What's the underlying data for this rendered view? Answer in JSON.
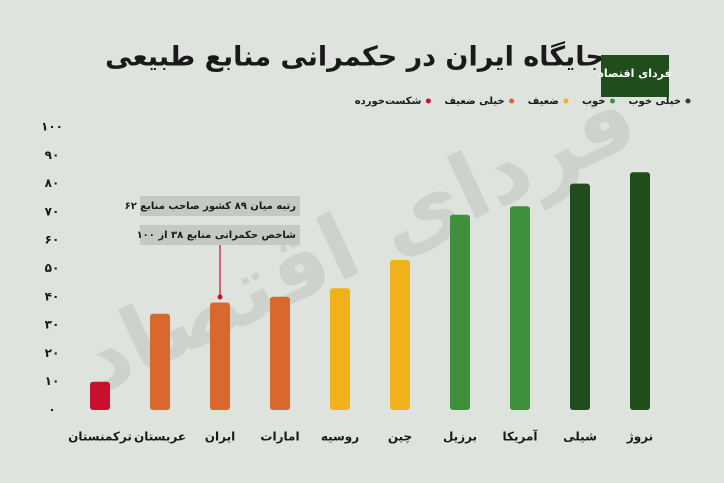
{
  "chart_data": {
    "type": "bar",
    "title": "جایگاه ایران در حکمرانی منابع طبیعی",
    "logo": "فردای اقتصاد",
    "categories": [
      "ترکمنستان",
      "عربستان",
      "ایران",
      "امارات",
      "روسیه",
      "چین",
      "برزیل",
      "آمریکا",
      "شیلی",
      "نروژ"
    ],
    "values": [
      10,
      34,
      38,
      40,
      43,
      53,
      69,
      72,
      80,
      84
    ],
    "colors": [
      "#c8102e",
      "#d9682e",
      "#d9682e",
      "#d9682e",
      "#f0b21a",
      "#f0b21a",
      "#3f8f3c",
      "#3f8f3c",
      "#1f4d1b",
      "#1f4d1b"
    ],
    "legend": [
      {
        "name": "خیلی خوب",
        "color": "#1f4d1b"
      },
      {
        "name": "خوب",
        "color": "#3f8f3c"
      },
      {
        "name": "ضعیف",
        "color": "#f0b21a"
      },
      {
        "name": "خیلی ضعیف",
        "color": "#d9682e"
      },
      {
        "name": "شکست‌خورده",
        "color": "#c8102e"
      }
    ],
    "annotations": [
      "رتبه میان ۸۹ کشور صاحب منابع ۶۲",
      "شاخص حکمرانی منابع ۳۸ از ۱۰۰"
    ],
    "ylim": [
      0,
      100
    ],
    "yticks": [
      {
        "value": 0,
        "label": "۰"
      },
      {
        "value": 10,
        "label": "۱۰"
      },
      {
        "value": 20,
        "label": "۲۰"
      },
      {
        "value": 30,
        "label": "۳۰"
      },
      {
        "value": 40,
        "label": "۴۰"
      },
      {
        "value": 50,
        "label": "۵۰"
      },
      {
        "value": 60,
        "label": "۶۰"
      },
      {
        "value": 70,
        "label": "۷۰"
      },
      {
        "value": 80,
        "label": "۸۰"
      },
      {
        "value": 90,
        "label": "۹۰"
      },
      {
        "value": 100,
        "label": "۱۰۰"
      }
    ],
    "grid": false
  }
}
